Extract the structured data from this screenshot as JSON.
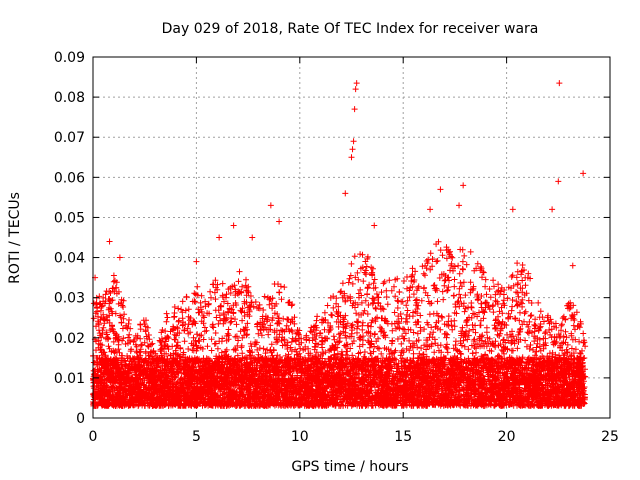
{
  "chart_data": {
    "type": "scatter",
    "title": "Day 029 of 2018, Rate Of TEC Index for receiver wara",
    "xlabel": "GPS time / hours",
    "ylabel": "ROTI / TECUs",
    "xlim": [
      0,
      25
    ],
    "ylim": [
      0,
      0.09
    ],
    "xticks": [
      0,
      5,
      10,
      15,
      20,
      25
    ],
    "yticks": [
      0,
      0.01,
      0.02,
      0.03,
      0.04,
      0.05,
      0.06,
      0.07,
      0.08,
      0.09
    ],
    "xtick_labels": [
      "0",
      "5",
      "10",
      "15",
      "20",
      "25"
    ],
    "ytick_labels": [
      "0",
      "0.01",
      "0.02",
      "0.03",
      "0.04",
      "0.05",
      "0.06",
      "0.07",
      "0.08",
      "0.09"
    ],
    "grid": true,
    "marker": "+",
    "color": "#ff0000",
    "x_range_of_data": [
      0,
      23.8
    ],
    "baseline_band": [
      0.003,
      0.015
    ],
    "series": [
      {
        "name": "ROTI",
        "highlight_points": [
          {
            "x": 0.1,
            "y": 0.035
          },
          {
            "x": 0.8,
            "y": 0.044
          },
          {
            "x": 1.3,
            "y": 0.04
          },
          {
            "x": 5.0,
            "y": 0.039
          },
          {
            "x": 6.1,
            "y": 0.045
          },
          {
            "x": 6.8,
            "y": 0.048
          },
          {
            "x": 7.7,
            "y": 0.045
          },
          {
            "x": 8.6,
            "y": 0.053
          },
          {
            "x": 9.0,
            "y": 0.049
          },
          {
            "x": 12.2,
            "y": 0.056
          },
          {
            "x": 12.5,
            "y": 0.065
          },
          {
            "x": 12.55,
            "y": 0.067
          },
          {
            "x": 12.6,
            "y": 0.069
          },
          {
            "x": 12.65,
            "y": 0.077
          },
          {
            "x": 12.7,
            "y": 0.082
          },
          {
            "x": 12.75,
            "y": 0.0835
          },
          {
            "x": 13.6,
            "y": 0.048
          },
          {
            "x": 16.3,
            "y": 0.052
          },
          {
            "x": 16.8,
            "y": 0.057
          },
          {
            "x": 17.9,
            "y": 0.058
          },
          {
            "x": 17.7,
            "y": 0.053
          },
          {
            "x": 20.3,
            "y": 0.052
          },
          {
            "x": 22.2,
            "y": 0.052
          },
          {
            "x": 22.5,
            "y": 0.059
          },
          {
            "x": 22.55,
            "y": 0.0835
          },
          {
            "x": 23.7,
            "y": 0.061
          },
          {
            "x": 23.2,
            "y": 0.038
          }
        ],
        "activity_envelope": [
          {
            "x": 0.0,
            "y": 0.032
          },
          {
            "x": 0.5,
            "y": 0.03
          },
          {
            "x": 1.0,
            "y": 0.036
          },
          {
            "x": 1.5,
            "y": 0.03
          },
          {
            "x": 2.0,
            "y": 0.02
          },
          {
            "x": 2.5,
            "y": 0.026
          },
          {
            "x": 3.0,
            "y": 0.016
          },
          {
            "x": 3.5,
            "y": 0.026
          },
          {
            "x": 4.0,
            "y": 0.028
          },
          {
            "x": 4.5,
            "y": 0.031
          },
          {
            "x": 5.0,
            "y": 0.033
          },
          {
            "x": 5.5,
            "y": 0.03
          },
          {
            "x": 6.0,
            "y": 0.036
          },
          {
            "x": 6.5,
            "y": 0.032
          },
          {
            "x": 7.0,
            "y": 0.038
          },
          {
            "x": 7.5,
            "y": 0.034
          },
          {
            "x": 8.0,
            "y": 0.028
          },
          {
            "x": 8.5,
            "y": 0.032
          },
          {
            "x": 9.0,
            "y": 0.036
          },
          {
            "x": 9.5,
            "y": 0.03
          },
          {
            "x": 10.0,
            "y": 0.024
          },
          {
            "x": 10.5,
            "y": 0.022
          },
          {
            "x": 11.0,
            "y": 0.028
          },
          {
            "x": 11.5,
            "y": 0.03
          },
          {
            "x": 12.0,
            "y": 0.036
          },
          {
            "x": 12.5,
            "y": 0.04
          },
          {
            "x": 13.0,
            "y": 0.042
          },
          {
            "x": 13.5,
            "y": 0.04
          },
          {
            "x": 14.0,
            "y": 0.038
          },
          {
            "x": 14.5,
            "y": 0.036
          },
          {
            "x": 15.0,
            "y": 0.036
          },
          {
            "x": 15.5,
            "y": 0.038
          },
          {
            "x": 16.0,
            "y": 0.04
          },
          {
            "x": 16.5,
            "y": 0.044
          },
          {
            "x": 17.0,
            "y": 0.044
          },
          {
            "x": 17.5,
            "y": 0.04
          },
          {
            "x": 18.0,
            "y": 0.044
          },
          {
            "x": 18.5,
            "y": 0.04
          },
          {
            "x": 19.0,
            "y": 0.036
          },
          {
            "x": 19.5,
            "y": 0.034
          },
          {
            "x": 20.0,
            "y": 0.032
          },
          {
            "x": 20.5,
            "y": 0.04
          },
          {
            "x": 21.0,
            "y": 0.038
          },
          {
            "x": 21.5,
            "y": 0.03
          },
          {
            "x": 22.0,
            "y": 0.026
          },
          {
            "x": 22.5,
            "y": 0.024
          },
          {
            "x": 23.0,
            "y": 0.03
          },
          {
            "x": 23.5,
            "y": 0.026
          },
          {
            "x": 23.8,
            "y": 0.02
          }
        ]
      }
    ]
  }
}
